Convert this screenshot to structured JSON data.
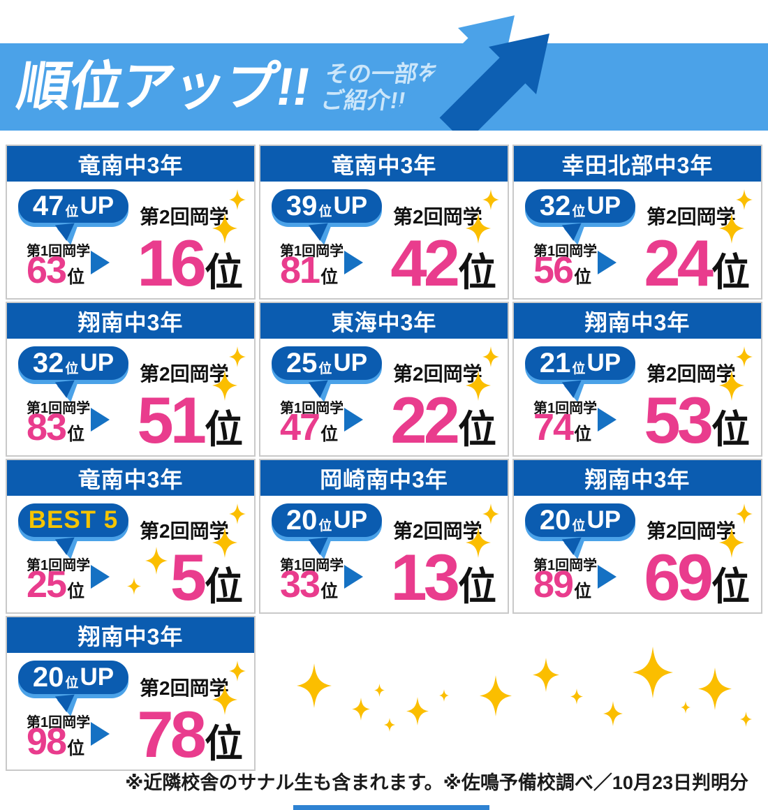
{
  "header": {
    "title": "順位アップ!!",
    "subtitle_line1": "その一部を",
    "subtitle_line2": "ご紹介!!"
  },
  "cards": [
    {
      "school": "竜南中3年",
      "badge_value": "47",
      "badge_unit": "位",
      "badge_suffix": "UP",
      "badge_text": "",
      "exam2_label": "第2回岡学",
      "exam1_label": "第1回岡学",
      "before": "63",
      "before_unit": "位",
      "after": "16",
      "after_unit": "位"
    },
    {
      "school": "竜南中3年",
      "badge_value": "39",
      "badge_unit": "位",
      "badge_suffix": "UP",
      "badge_text": "",
      "exam2_label": "第2回岡学",
      "exam1_label": "第1回岡学",
      "before": "81",
      "before_unit": "位",
      "after": "42",
      "after_unit": "位"
    },
    {
      "school": "幸田北部中3年",
      "badge_value": "32",
      "badge_unit": "位",
      "badge_suffix": "UP",
      "badge_text": "",
      "exam2_label": "第2回岡学",
      "exam1_label": "第1回岡学",
      "before": "56",
      "before_unit": "位",
      "after": "24",
      "after_unit": "位"
    },
    {
      "school": "翔南中3年",
      "badge_value": "32",
      "badge_unit": "位",
      "badge_suffix": "UP",
      "badge_text": "",
      "exam2_label": "第2回岡学",
      "exam1_label": "第1回岡学",
      "before": "83",
      "before_unit": "位",
      "after": "51",
      "after_unit": "位"
    },
    {
      "school": "東海中3年",
      "badge_value": "25",
      "badge_unit": "位",
      "badge_suffix": "UP",
      "badge_text": "",
      "exam2_label": "第2回岡学",
      "exam1_label": "第1回岡学",
      "before": "47",
      "before_unit": "位",
      "after": "22",
      "after_unit": "位"
    },
    {
      "school": "翔南中3年",
      "badge_value": "21",
      "badge_unit": "位",
      "badge_suffix": "UP",
      "badge_text": "",
      "exam2_label": "第2回岡学",
      "exam1_label": "第1回岡学",
      "before": "74",
      "before_unit": "位",
      "after": "53",
      "after_unit": "位"
    },
    {
      "school": "竜南中3年",
      "badge_value": "",
      "badge_unit": "",
      "badge_suffix": "",
      "badge_text": "BEST 5",
      "exam2_label": "第2回岡学",
      "exam1_label": "第1回岡学",
      "before": "25",
      "before_unit": "位",
      "after": "5",
      "after_unit": "位"
    },
    {
      "school": "岡崎南中3年",
      "badge_value": "20",
      "badge_unit": "位",
      "badge_suffix": "UP",
      "badge_text": "",
      "exam2_label": "第2回岡学",
      "exam1_label": "第1回岡学",
      "before": "33",
      "before_unit": "位",
      "after": "13",
      "after_unit": "位"
    },
    {
      "school": "翔南中3年",
      "badge_value": "20",
      "badge_unit": "位",
      "badge_suffix": "UP",
      "badge_text": "",
      "exam2_label": "第2回岡学",
      "exam1_label": "第1回岡学",
      "before": "89",
      "before_unit": "位",
      "after": "69",
      "after_unit": "位"
    },
    {
      "school": "翔南中3年",
      "badge_value": "20",
      "badge_unit": "位",
      "badge_suffix": "UP",
      "badge_text": "",
      "exam2_label": "第2回岡学",
      "exam1_label": "第1回岡学",
      "before": "98",
      "before_unit": "位",
      "after": "78",
      "after_unit": "位"
    }
  ],
  "footer": {
    "note": "※近隣校舎のサナル生も含まれます。※佐鳴予備校調べ／10月23日判明分"
  },
  "icons": {
    "sparkle_icon": "gold four-point star",
    "up_arrow_icon": "diagonal up-right double arrow",
    "next_triangle_icon": "blue right-pointing triangle",
    "speech_bubble": "blue rounded speech bubble with tail"
  },
  "colors": {
    "banner_blue": "#4BA2E8",
    "dark_blue": "#0B5CB0",
    "triangle_blue": "#1571C3",
    "pink": "#E93C8D",
    "gold_text": "#F5C400",
    "gold_sparkle": "#FBBE00",
    "subtitle_blue": "#CBE6FA",
    "bottom_bar_blue": "#2E82D2"
  }
}
